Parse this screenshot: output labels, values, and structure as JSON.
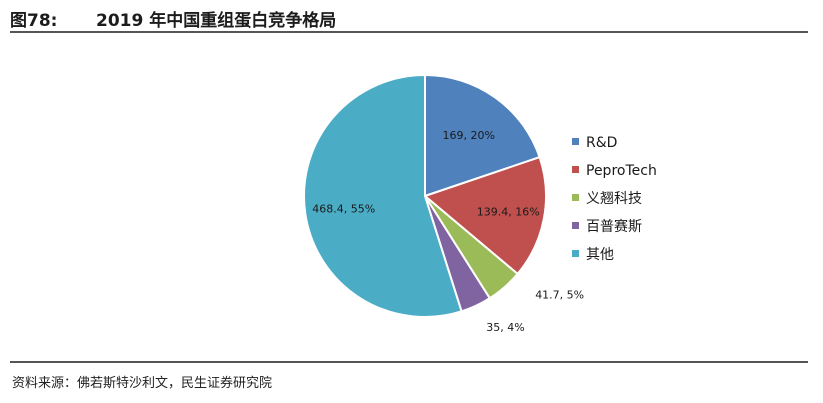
{
  "header": {
    "figure_number": "图78:",
    "title": "2019 年中国重组蛋白竞争格局"
  },
  "source": "资料来源：佛若斯特沙利文，民生证券研究院",
  "chart_data": {
    "type": "pie",
    "title": "2019 年中国重组蛋白竞争格局",
    "legend_position": "right",
    "slices": [
      {
        "name": "R&D",
        "value": 169,
        "percent": 20,
        "label": "169, 20%",
        "color": "#4f81bd"
      },
      {
        "name": "PeproTech",
        "value": 139.4,
        "percent": 16,
        "label": "139.4, 16%",
        "color": "#c0504d"
      },
      {
        "name": "义翘科技",
        "value": 41.7,
        "percent": 5,
        "label": "41.7, 5%",
        "color": "#9bbb59"
      },
      {
        "name": "百普赛斯",
        "value": 35,
        "percent": 4,
        "label": "35, 4%",
        "color": "#8064a2"
      },
      {
        "name": "其他",
        "value": 468.4,
        "percent": 55,
        "label": "468.4, 55%",
        "color": "#4bacc6"
      }
    ]
  }
}
